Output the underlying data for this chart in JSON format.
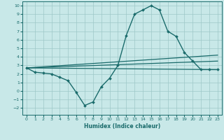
{
  "xlabel": "Humidex (Indice chaleur)",
  "bg_color": "#c8e8e8",
  "grid_color": "#9dc8c8",
  "line_color": "#1a6b6b",
  "xlim": [
    -0.5,
    23.5
  ],
  "ylim": [
    -2.8,
    10.5
  ],
  "xticks": [
    0,
    1,
    2,
    3,
    4,
    5,
    6,
    7,
    8,
    9,
    10,
    11,
    12,
    13,
    14,
    15,
    16,
    17,
    18,
    19,
    20,
    21,
    22,
    23
  ],
  "yticks": [
    -2,
    -1,
    0,
    1,
    2,
    3,
    4,
    5,
    6,
    7,
    8,
    9,
    10
  ],
  "main_series": {
    "x": [
      0,
      1,
      2,
      3,
      4,
      5,
      6,
      7,
      8,
      9,
      10,
      11,
      12,
      13,
      14,
      15,
      16,
      17,
      18,
      19,
      20,
      21,
      22,
      23
    ],
    "y": [
      2.7,
      2.2,
      2.1,
      2.0,
      1.6,
      1.2,
      -0.2,
      -1.7,
      -1.3,
      0.5,
      1.5,
      3.0,
      6.5,
      9.0,
      9.5,
      10.0,
      9.5,
      7.0,
      6.4,
      4.5,
      3.5,
      2.5,
      2.5,
      2.5
    ]
  },
  "trend_lines": [
    {
      "x": [
        0,
        23
      ],
      "y": [
        2.7,
        2.5
      ]
    },
    {
      "x": [
        0,
        23
      ],
      "y": [
        2.7,
        3.5
      ]
    },
    {
      "x": [
        0,
        23
      ],
      "y": [
        2.7,
        4.2
      ]
    }
  ]
}
